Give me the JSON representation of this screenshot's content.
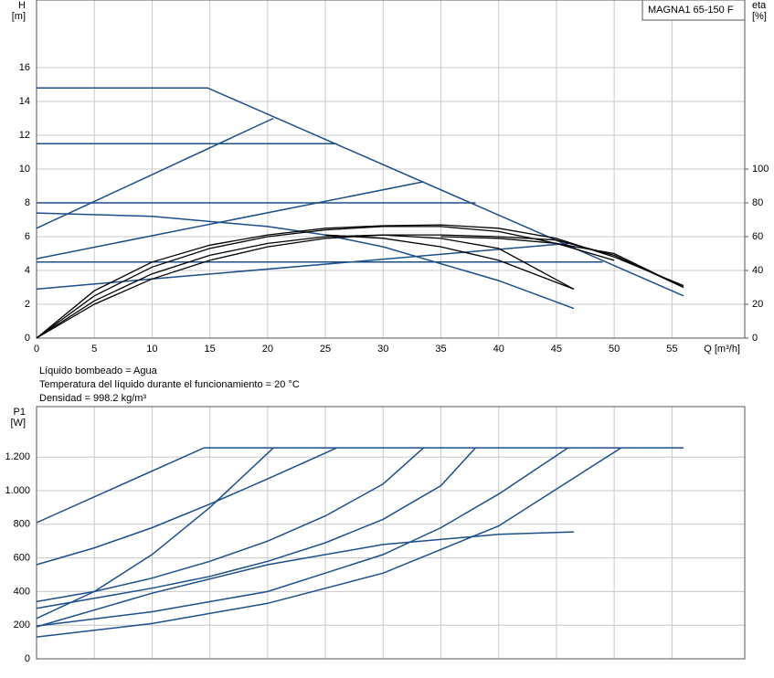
{
  "notes": [
    "Líquido bombeado = Agua",
    "Temperatura del líquido durante el funcionamiento = 20 °C",
    "Densidad = 998.2 kg/m³"
  ],
  "chart_data": [
    {
      "type": "line",
      "title": "MAGNA1 65-150 F",
      "ylabel": [
        "H",
        "[m]"
      ],
      "y2label": [
        "eta",
        "[%]"
      ],
      "xlabel": "Q [m³/h]",
      "xlim": [
        0,
        61.3
      ],
      "xticks": [
        0,
        5,
        10,
        15,
        20,
        25,
        30,
        35,
        40,
        45,
        50,
        55
      ],
      "ylim": [
        0,
        20
      ],
      "yticks": [
        0,
        2,
        4,
        6,
        8,
        10,
        12,
        14,
        16
      ],
      "y2lim": [
        0,
        200
      ],
      "y2ticks": [
        0,
        20,
        40,
        60,
        80,
        100
      ],
      "grid": true,
      "xtick_labels": true,
      "series": [
        {
          "color": "#1b4f8a",
          "x": [
            0,
            14.8,
            56
          ],
          "values": [
            14.8,
            14.8,
            2.5
          ]
        },
        {
          "color": "#1b4f8a",
          "x": [
            0,
            26
          ],
          "values": [
            11.5,
            11.5
          ]
        },
        {
          "color": "#1b4f8a",
          "x": [
            0,
            38
          ],
          "values": [
            8,
            8
          ]
        },
        {
          "color": "#1b4f8a",
          "x": [
            0,
            49
          ],
          "values": [
            4.5,
            4.5
          ]
        },
        {
          "color": "#1b4f8a",
          "x": [
            0,
            20.5
          ],
          "values": [
            6.5,
            13
          ]
        },
        {
          "color": "#1b4f8a",
          "x": [
            0,
            33.5
          ],
          "values": [
            4.7,
            9.25
          ]
        },
        {
          "color": "#1b4f8a",
          "x": [
            0,
            10,
            46
          ],
          "values": [
            2.9,
            3.5,
            5.6
          ]
        },
        {
          "color": "#1b4f8a",
          "x": [
            0,
            10,
            20,
            25,
            30,
            40,
            46.5
          ],
          "values": [
            7.4,
            7.2,
            6.6,
            6.1,
            5.4,
            3.4,
            1.75
          ]
        },
        {
          "color": "#000000",
          "x": [
            25,
            30,
            35,
            40,
            46.5
          ],
          "values": [
            6.1,
            5.9,
            5.4,
            4.6,
            2.9
          ]
        },
        {
          "color": "#000000",
          "x": [
            35,
            40,
            45,
            50,
            56
          ],
          "values": [
            6.0,
            5.9,
            5.6,
            5.0,
            3.0
          ]
        },
        {
          "color": "#000000",
          "axis": "y2",
          "x": [
            0,
            5,
            10,
            15,
            20,
            25,
            30,
            35,
            40,
            45,
            50,
            56
          ],
          "values": [
            0,
            28,
            45,
            55,
            61,
            65,
            66.5,
            67,
            65,
            59,
            48,
            31
          ]
        },
        {
          "color": "#000000",
          "axis": "y2",
          "x": [
            0,
            5,
            10,
            15,
            20,
            25,
            30,
            35,
            40,
            45,
            50
          ],
          "values": [
            0,
            25,
            42,
            53,
            60,
            64,
            66,
            66,
            63,
            56,
            46
          ]
        },
        {
          "color": "#000000",
          "axis": "y2",
          "x": [
            0,
            5,
            10,
            15,
            20,
            25,
            30,
            35,
            40,
            46.5
          ],
          "values": [
            0,
            22,
            38,
            49,
            56,
            60,
            61,
            59,
            53,
            29
          ]
        },
        {
          "color": "#000000",
          "axis": "y2",
          "x": [
            0,
            5,
            10,
            15,
            20,
            25,
            30,
            35,
            40,
            45,
            50,
            56
          ],
          "values": [
            0,
            20,
            35,
            46,
            54,
            59,
            61,
            61,
            60,
            58,
            49,
            30
          ]
        }
      ]
    },
    {
      "type": "line",
      "ylabel": [
        "P1",
        "[W]"
      ],
      "xlim": [
        0,
        61.3
      ],
      "xticks": [
        0,
        5,
        10,
        15,
        20,
        25,
        30,
        35,
        40,
        45,
        50,
        55
      ],
      "ylim": [
        0,
        1500
      ],
      "yticks": [
        0,
        200,
        400,
        600,
        800,
        {
          "value": 1000,
          "label": "1.000"
        },
        {
          "value": 1200,
          "label": "1.200"
        }
      ],
      "grid": true,
      "xtick_labels": false,
      "series": [
        {
          "color": "#1b4f8a",
          "x": [
            0,
            14.5,
            56
          ],
          "values": [
            810,
            1255,
            1255
          ]
        },
        {
          "color": "#1b4f8a",
          "x": [
            0,
            5,
            10,
            15,
            20,
            26
          ],
          "values": [
            560,
            660,
            780,
            920,
            1070,
            1255
          ]
        },
        {
          "color": "#1b4f8a",
          "x": [
            0,
            5,
            10,
            15,
            20.5
          ],
          "values": [
            240,
            400,
            620,
            900,
            1255
          ]
        },
        {
          "color": "#1b4f8a",
          "x": [
            0,
            5,
            10,
            15,
            20,
            25,
            30,
            33.5
          ],
          "values": [
            340,
            400,
            480,
            580,
            700,
            850,
            1040,
            1255
          ]
        },
        {
          "color": "#1b4f8a",
          "x": [
            0,
            5,
            10,
            15,
            20,
            25,
            30,
            35,
            38
          ],
          "values": [
            300,
            360,
            420,
            490,
            580,
            690,
            830,
            1030,
            1255
          ]
        },
        {
          "color": "#1b4f8a",
          "x": [
            0,
            10,
            20,
            30,
            35,
            40,
            46
          ],
          "values": [
            195,
            280,
            400,
            620,
            780,
            980,
            1255
          ]
        },
        {
          "color": "#1b4f8a",
          "x": [
            0,
            10,
            20,
            30,
            40,
            50.6
          ],
          "values": [
            130,
            210,
            330,
            510,
            790,
            1255
          ]
        },
        {
          "color": "#1b4f8a",
          "x": [
            0,
            10,
            20,
            30,
            40,
            46.5
          ],
          "values": [
            190,
            390,
            560,
            680,
            740,
            755
          ]
        }
      ]
    }
  ]
}
